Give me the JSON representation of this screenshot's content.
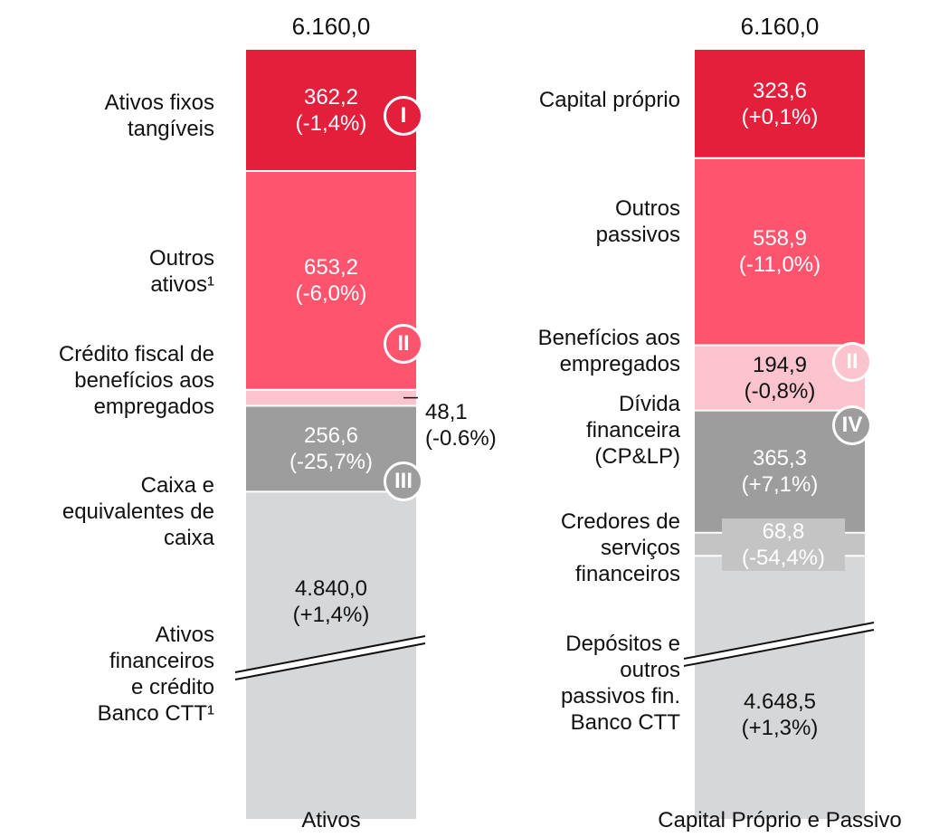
{
  "chart_data": [
    {
      "type": "stacked_bar",
      "category": "Ativos",
      "total": 6160.0,
      "total_label": "6.160,0",
      "axis_break": true,
      "segments": [
        {
          "name": "Ativos fixos\ntangíveis",
          "value": 362.2,
          "value_label": "362,2\n(-1,4%)",
          "color": "#e31f3c",
          "badge": "I"
        },
        {
          "name": "Outros\nativos¹",
          "value": 653.2,
          "value_label": "653,2\n(-6,0%)",
          "color": "#ff546e",
          "badge": "II"
        },
        {
          "name": "Crédito fiscal de\nbenefícios aos\nempregados",
          "value": 48.1,
          "value_label": "48,1\n(-0.6%)",
          "color": "#fbc3cd"
        },
        {
          "name": "Caixa e\nequivalentes de\ncaixa",
          "value": 256.6,
          "value_label": "256,6\n(-25,7%)",
          "color": "#9d9d9d",
          "badge": "III"
        },
        {
          "name": "Ativos\nfinanceiros\ne crédito\nBanco CTT¹",
          "value": 4840.0,
          "value_label": "4.840,0\n(+1,4%)",
          "color": "#d6d7d9"
        }
      ]
    },
    {
      "type": "stacked_bar",
      "category": "Capital Próprio e Passivo",
      "total": 6160.0,
      "total_label": "6.160,0",
      "axis_break": true,
      "segments": [
        {
          "name": "Capital próprio",
          "value": 323.6,
          "value_label": "323,6\n(+0,1%)",
          "color": "#e31f3c"
        },
        {
          "name": "Outros\npassivos",
          "value": 558.9,
          "value_label": "558,9\n(-11,0%)",
          "color": "#ff546e"
        },
        {
          "name": "Benefícios aos\nempregados",
          "value": 194.9,
          "value_label": "194,9\n(-0,8%)",
          "color": "#fbc3cd",
          "badge": "II"
        },
        {
          "name": "Dívida\nfinanceira\n(CP&LP)",
          "value": 365.3,
          "value_label": "365,3\n(+7,1%)",
          "color": "#9d9d9d",
          "badge": "IV"
        },
        {
          "name": "Credores de\nserviços\nfinanceiros",
          "value": 68.8,
          "value_label": "68,8\n(-54,4%)",
          "color": "#c4c4c4"
        },
        {
          "name": "Depósitos e\noutros\npassivos fin.\nBanco CTT",
          "value": 4648.5,
          "value_label": "4.648,5\n(+1,3%)",
          "color": "#d6d7d9"
        }
      ]
    }
  ]
}
